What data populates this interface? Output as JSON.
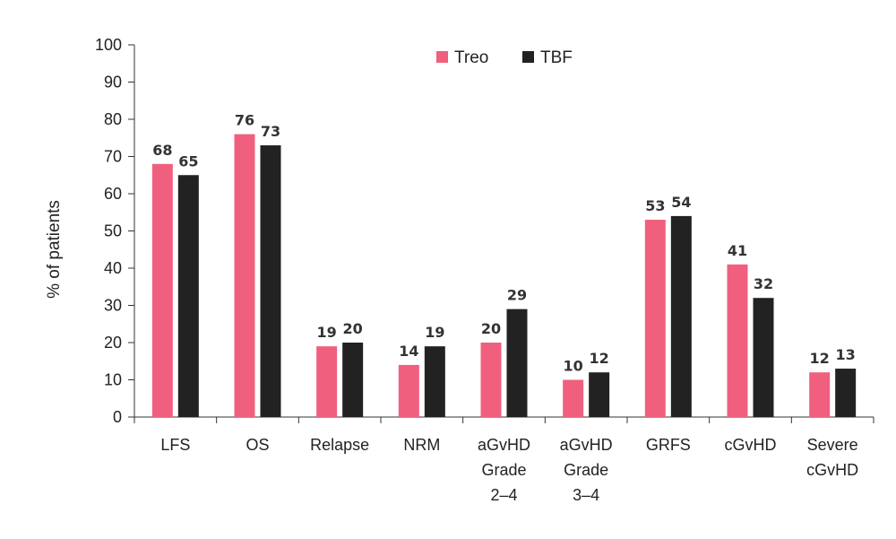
{
  "chart_data": {
    "type": "bar",
    "title": "",
    "xlabel": "",
    "ylabel": "% of patients",
    "ylim": [
      0,
      100
    ],
    "yticks": [
      0,
      10,
      20,
      30,
      40,
      50,
      60,
      70,
      80,
      90,
      100
    ],
    "grid": false,
    "legend_position": "top-right",
    "categories": [
      [
        "LFS"
      ],
      [
        "OS"
      ],
      [
        "Relapse"
      ],
      [
        "NRM"
      ],
      [
        "aGvHD",
        "Grade",
        "2–4"
      ],
      [
        "aGvHD",
        "Grade",
        "3–4"
      ],
      [
        "GRFS"
      ],
      [
        "cGvHD"
      ],
      [
        "Severe",
        "cGvHD"
      ]
    ],
    "series": [
      {
        "name": "Treo",
        "color": "#f0607e",
        "values": [
          68,
          76,
          19,
          14,
          20,
          10,
          53,
          41,
          12
        ]
      },
      {
        "name": "TBF",
        "color": "#222222",
        "values": [
          65,
          73,
          20,
          19,
          29,
          12,
          54,
          32,
          13
        ]
      }
    ]
  }
}
